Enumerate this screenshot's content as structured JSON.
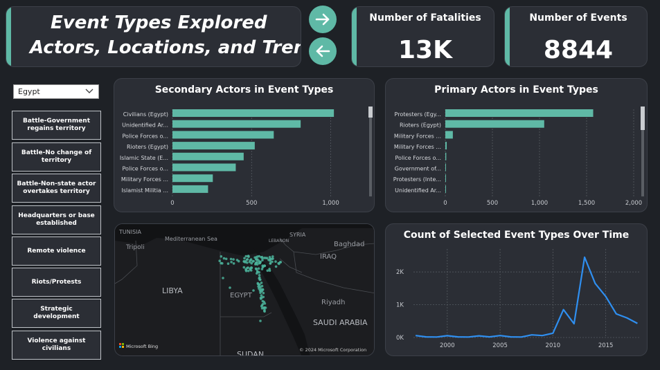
{
  "title": {
    "line1": "Event Types Explored",
    "line2": "Actors, Locations, and Trends"
  },
  "kpis": {
    "fatalities": {
      "label": "Number of Fatalities",
      "value": "13K"
    },
    "events": {
      "label": "Number of Events",
      "value": "8844"
    }
  },
  "colors": {
    "accent": "#5fb9a6",
    "line": "#2f8ff0",
    "card": "#2b2e35",
    "background": "#1e2126"
  },
  "filter": {
    "selected": "Egypt"
  },
  "event_types": [
    "Battle-Government regains territory",
    "Battle-No change of territory",
    "Battle-Non-state actor overtakes territory",
    "Headquarters or base established",
    "Remote violence",
    "Riots/Protests",
    "Strategic development",
    "Violence against civilians"
  ],
  "map": {
    "labels": [
      "TUNISIA",
      "Tripoli",
      "Mediterranean Sea",
      "LEBANON",
      "SYRIA",
      "Baghdad",
      "IRAQ",
      "LIBYA",
      "EGYPT",
      "Riyadh",
      "SAUDI ARABIA",
      "SUDAN"
    ],
    "brand": "Microsoft Bing",
    "copyright": "© 2024 Microsoft Corporation"
  },
  "chart_data": [
    {
      "type": "bar",
      "title": "Secondary Actors in Event Types",
      "categories": [
        "Civilians (Egypt)",
        "Unidentified Ar...",
        "Police Forces o...",
        "Rioters (Egypt)",
        "Islamic State (E...",
        "Police Forces o...",
        "Military Forces ...",
        "Islamist Militia ..."
      ],
      "values": [
        1020,
        810,
        640,
        520,
        450,
        400,
        255,
        225
      ],
      "xlim": [
        0,
        1050
      ],
      "ticks": [
        0,
        500,
        1000
      ],
      "tick_labels": [
        "0",
        "500",
        "1,000"
      ]
    },
    {
      "type": "bar",
      "title": "Primary Actors in Event Types",
      "categories": [
        "Protesters (Egy...",
        "Rioters (Egypt)",
        "Military Forces ...",
        "Military Forces ...",
        "Police Forces o...",
        "Government of...",
        "Protesters (Inte...",
        "Unidentified Ar..."
      ],
      "values": [
        1570,
        1050,
        80,
        15,
        10,
        3,
        2,
        2
      ],
      "xlim": [
        0,
        2000
      ],
      "ticks": [
        0,
        500,
        1000,
        1500,
        2000
      ],
      "tick_labels": [
        "0",
        "500",
        "1,000",
        "1,500",
        "2,000"
      ]
    },
    {
      "type": "line",
      "title": "Count of Selected Event Types Over Time",
      "x": [
        1997,
        1998,
        1999,
        2000,
        2001,
        2002,
        2003,
        2004,
        2005,
        2006,
        2007,
        2008,
        2009,
        2010,
        2011,
        2012,
        2013,
        2014,
        2015,
        2016,
        2017,
        2018
      ],
      "values": [
        60,
        20,
        15,
        55,
        20,
        15,
        50,
        20,
        60,
        20,
        15,
        80,
        60,
        130,
        850,
        420,
        2450,
        1650,
        1250,
        720,
        600,
        430
      ],
      "xlim": [
        1996.8,
        2018.3
      ],
      "ylim": [
        0,
        2700
      ],
      "xticks": [
        2000,
        2005,
        2010,
        2015
      ],
      "yticks": [
        0,
        1000,
        2000
      ],
      "ytick_labels": [
        "0K",
        "1K",
        "2K"
      ]
    }
  ]
}
